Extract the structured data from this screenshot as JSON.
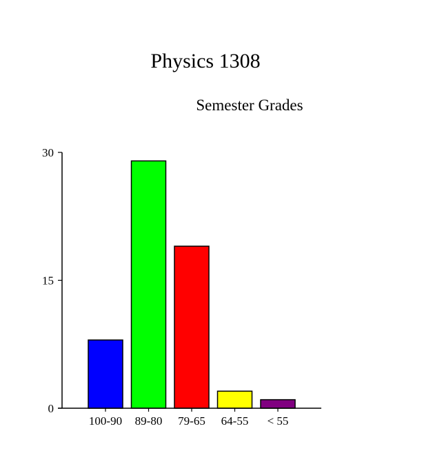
{
  "chart_data": {
    "type": "bar",
    "title": "Physics 1308",
    "subtitle": "Semester Grades",
    "xlabel": "",
    "ylabel": "",
    "categories": [
      "100-90",
      "89-80",
      "79-65",
      "64-55",
      "< 55"
    ],
    "values": [
      8,
      29,
      19,
      2,
      1
    ],
    "colors": [
      "#0000ff",
      "#00ff00",
      "#ff0000",
      "#ffff00",
      "#800080"
    ],
    "ylim": [
      0,
      30
    ],
    "yticks": [
      0,
      15,
      30
    ],
    "grid": false,
    "legend": "none"
  }
}
